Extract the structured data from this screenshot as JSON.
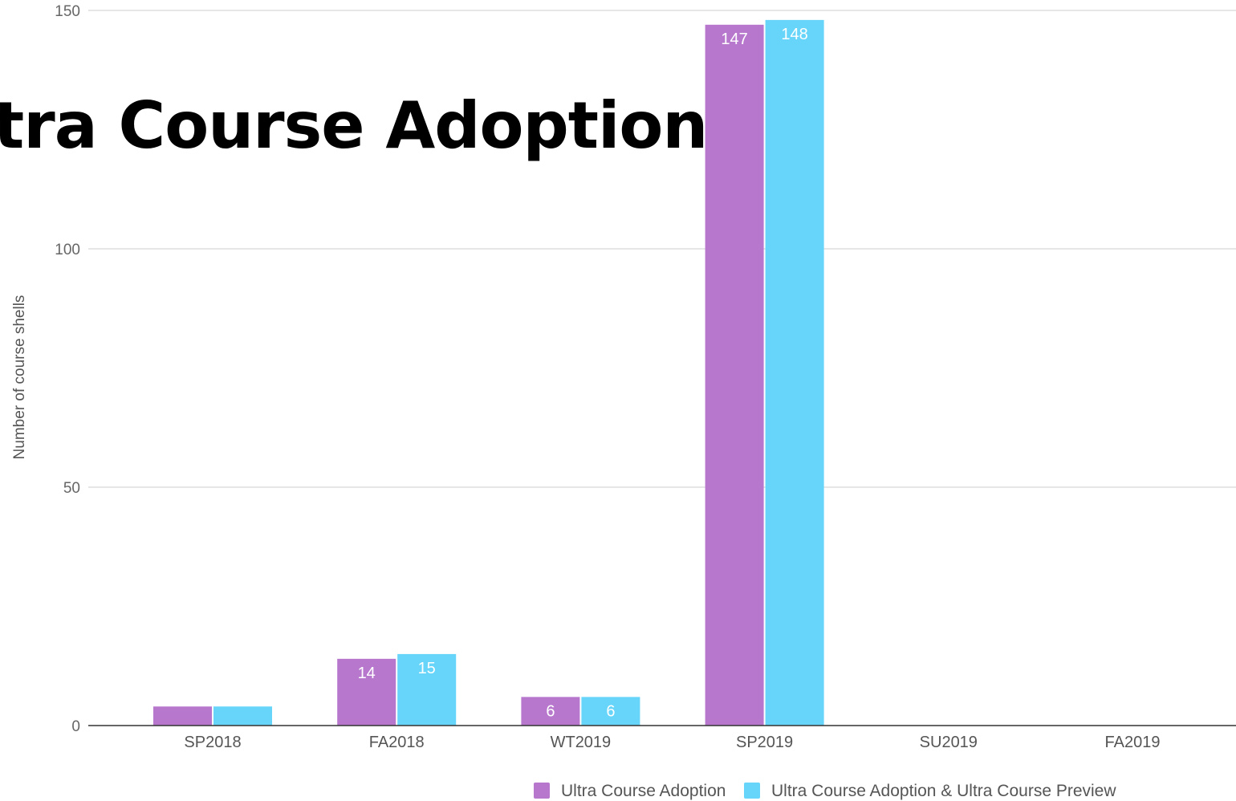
{
  "chart_data": {
    "type": "bar",
    "title": "tra Course Adoption",
    "ylabel": "Number of course shells",
    "xlabel": "",
    "ylim": [
      0,
      150
    ],
    "yticks": [
      0,
      50,
      100,
      150
    ],
    "grid": true,
    "legend_position": "bottom",
    "categories": [
      "SP2018",
      "FA2018",
      "WT2019",
      "SP2019",
      "SU2019",
      "FA2019"
    ],
    "series": [
      {
        "name": "Ultra Course Adoption",
        "color": "#b777cd",
        "values": [
          4,
          14,
          6,
          147,
          0,
          0
        ],
        "labels": [
          "",
          "14",
          "6",
          "147",
          "",
          ""
        ]
      },
      {
        "name": "Ultra Course Adoption & Ultra Course Preview",
        "color": "#66d5f9",
        "values": [
          4,
          15,
          6,
          148,
          0,
          0
        ],
        "labels": [
          "",
          "15",
          "6",
          "148",
          "",
          ""
        ]
      }
    ]
  }
}
